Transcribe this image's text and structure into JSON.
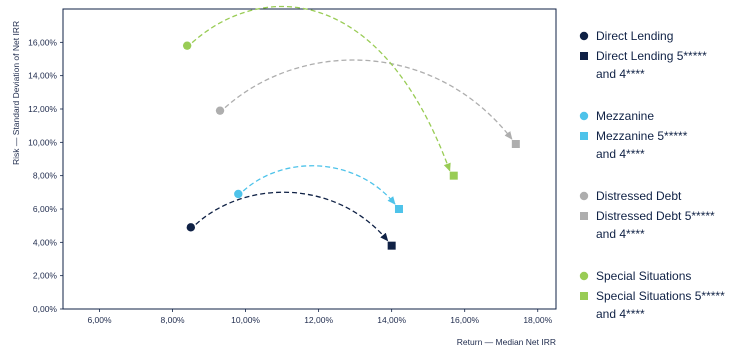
{
  "chart_data": {
    "type": "scatter",
    "xlabel": "Return — Median Net IRR",
    "ylabel": "Risk — Standard Deviation of Net IRR",
    "xlim": [
      0.05,
      0.185
    ],
    "ylim": [
      0.0,
      0.18
    ],
    "xticks": [
      0.06,
      0.08,
      0.1,
      0.12,
      0.14,
      0.16,
      0.18
    ],
    "xtick_labels": [
      "6,00%",
      "8,00%",
      "10,00%",
      "12,00%",
      "14,00%",
      "16,00%",
      "18,00%"
    ],
    "yticks": [
      0.0,
      0.02,
      0.04,
      0.06,
      0.08,
      0.1,
      0.12,
      0.14,
      0.16
    ],
    "ytick_labels": [
      "0,00%",
      "2,00%",
      "4,00%",
      "6,00%",
      "8,00%",
      "10,00%",
      "12,00%",
      "14,00%",
      "16,00%"
    ],
    "grid": false,
    "legend_position": "right",
    "series": [
      {
        "group": "direct-lending",
        "color": "#0f2145",
        "all": {
          "name": "Direct Lending",
          "x": 0.085,
          "y": 0.049
        },
        "top": {
          "name_line1": "Direct Lending 5*****",
          "name_line2": "and 4****",
          "x": 0.14,
          "y": 0.038
        }
      },
      {
        "group": "mezzanine",
        "color": "#4ec3ea",
        "all": {
          "name": "Mezzanine",
          "x": 0.098,
          "y": 0.069
        },
        "top": {
          "name_line1": "Mezzanine 5*****",
          "name_line2": "and 4****",
          "x": 0.142,
          "y": 0.06
        }
      },
      {
        "group": "distressed-debt",
        "color": "#aeaeae",
        "all": {
          "name": "Distressed Debt",
          "x": 0.093,
          "y": 0.119
        },
        "top": {
          "name_line1": "Distressed Debt 5*****",
          "name_line2": "and 4****",
          "x": 0.174,
          "y": 0.099
        }
      },
      {
        "group": "special-situations",
        "color": "#99cc55",
        "all": {
          "name": "Special Situations",
          "x": 0.084,
          "y": 0.158
        },
        "top": {
          "name_line1": "Special Situations 5*****",
          "name_line2": "and 4****",
          "x": 0.157,
          "y": 0.08
        }
      }
    ]
  }
}
